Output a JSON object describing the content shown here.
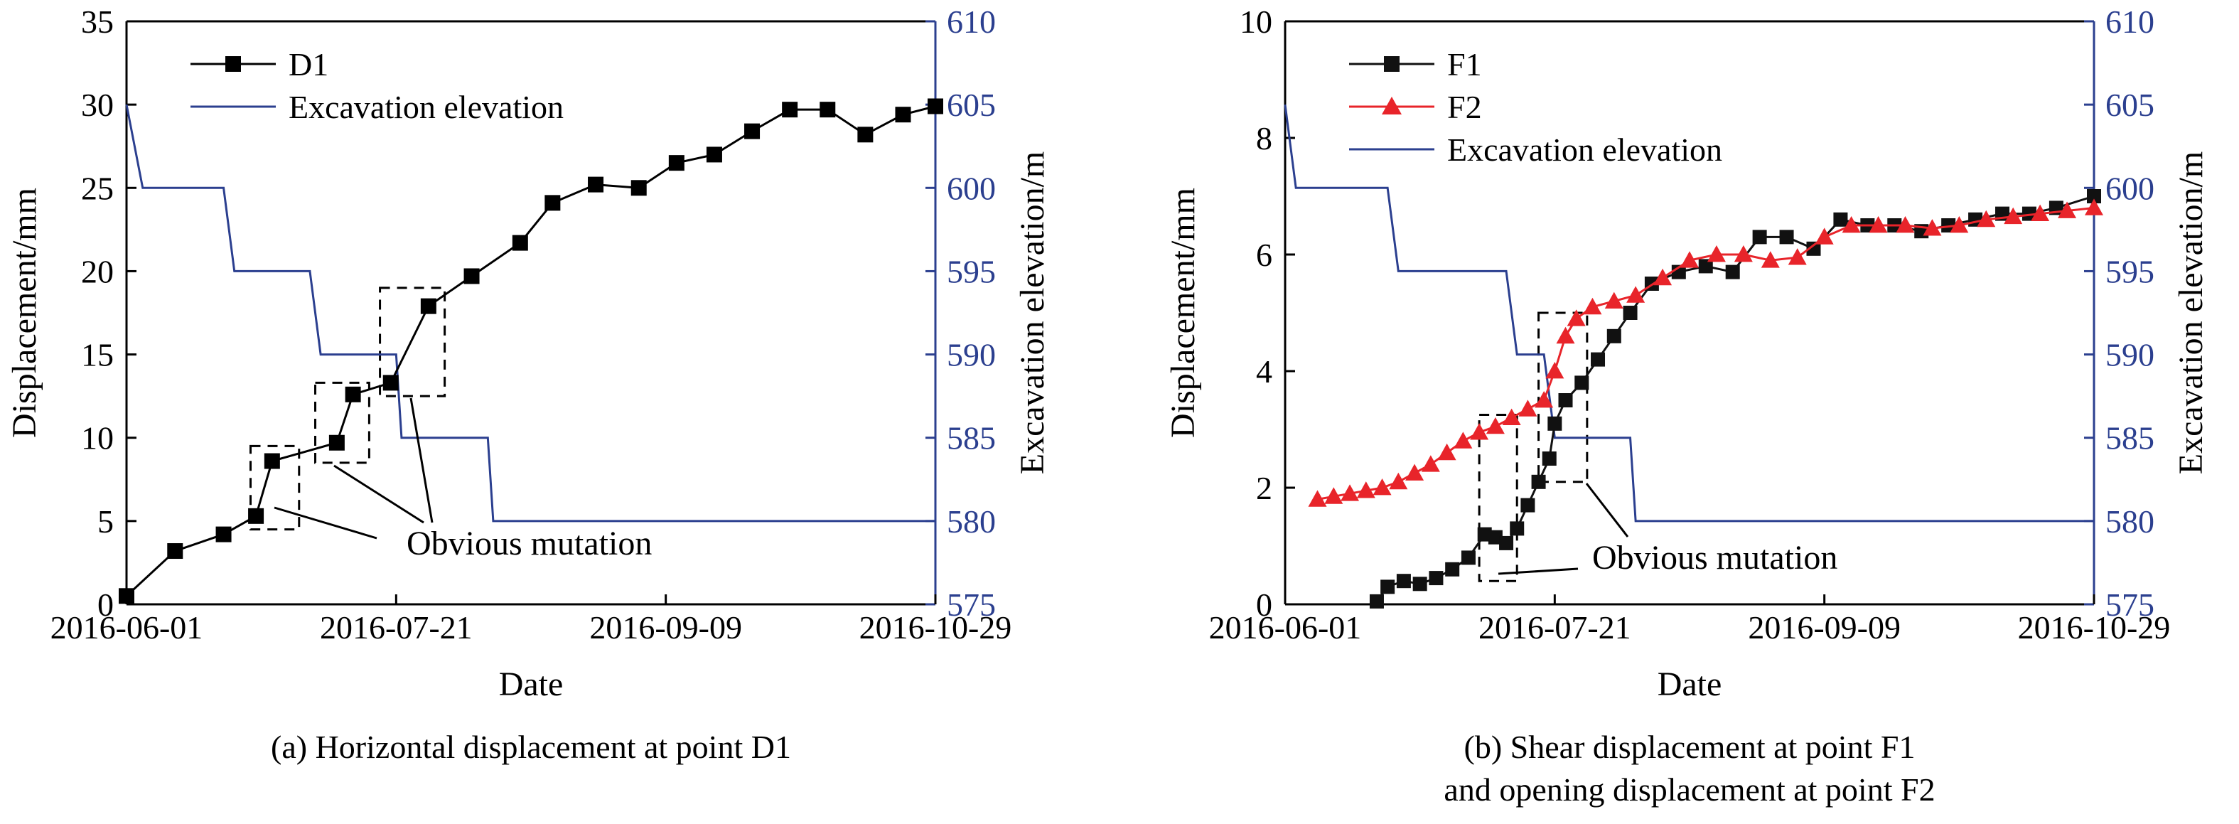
{
  "chart_data": [
    {
      "type": "line",
      "caption": "(a) Horizontal displacement at point D1",
      "xlabel": "Date",
      "ylabel": "Displacement/mm",
      "y2label": "Excavation elevation/m",
      "x_ticks": [
        "2016-06-01",
        "2016-07-21",
        "2016-09-09",
        "2016-10-29"
      ],
      "xlim": [
        "2016-06-01",
        "2016-10-29"
      ],
      "ylim": [
        0,
        35
      ],
      "y_ticks": [
        0,
        5,
        10,
        15,
        20,
        25,
        30,
        35
      ],
      "y2lim": [
        575,
        610
      ],
      "y2_ticks": [
        575,
        580,
        585,
        590,
        595,
        600,
        605,
        610
      ],
      "legend_position": "top-left",
      "annotation": "Obvious mutation",
      "series": [
        {
          "name": "D1",
          "axis": "left",
          "marker": "square",
          "color": "#000000",
          "x": [
            "2016-06-01",
            "2016-06-10",
            "2016-06-19",
            "2016-06-25",
            "2016-06-28",
            "2016-07-10",
            "2016-07-13",
            "2016-07-20",
            "2016-07-27",
            "2016-08-04",
            "2016-08-13",
            "2016-08-19",
            "2016-08-27",
            "2016-09-04",
            "2016-09-11",
            "2016-09-18",
            "2016-09-25",
            "2016-10-02",
            "2016-10-09",
            "2016-10-16",
            "2016-10-23",
            "2016-10-29"
          ],
          "y": [
            0.5,
            3.2,
            4.2,
            5.3,
            8.6,
            9.7,
            12.6,
            13.3,
            17.9,
            19.7,
            21.7,
            24.1,
            25.2,
            25.0,
            26.5,
            27.0,
            28.4,
            29.7,
            29.7,
            28.2,
            29.4,
            29.9
          ]
        },
        {
          "name": "Excavation elevation",
          "axis": "right",
          "color": "#2b3f8f",
          "step_x": [
            "2016-06-01",
            "2016-06-04",
            "2016-06-19",
            "2016-06-21",
            "2016-07-05",
            "2016-07-07",
            "2016-07-21",
            "2016-07-22",
            "2016-08-07",
            "2016-08-08",
            "2016-10-29"
          ],
          "step_y": [
            605,
            600,
            600,
            595,
            595,
            590,
            590,
            585,
            585,
            580,
            580
          ]
        }
      ],
      "mutation_boxes": [
        {
          "x": [
            "2016-06-24",
            "2016-07-03"
          ],
          "y": [
            4.5,
            9.5
          ]
        },
        {
          "x": [
            "2016-07-06",
            "2016-07-16"
          ],
          "y": [
            8.5,
            13.3
          ]
        },
        {
          "x": [
            "2016-07-18",
            "2016-07-30"
          ],
          "y": [
            12.5,
            19.0
          ]
        }
      ]
    },
    {
      "type": "line",
      "caption": "(b) Shear displacement at point F1",
      "caption2": "and opening displacement at point F2",
      "xlabel": "Date",
      "ylabel": "Displacement/mm",
      "y2label": "Excavation elevation/m",
      "x_ticks": [
        "2016-06-01",
        "2016-07-21",
        "2016-09-09",
        "2016-10-29"
      ],
      "xlim": [
        "2016-06-01",
        "2016-10-29"
      ],
      "ylim": [
        0,
        10
      ],
      "y_ticks": [
        0,
        2,
        4,
        6,
        8,
        10
      ],
      "y2lim": [
        575,
        610
      ],
      "y2_ticks": [
        575,
        580,
        585,
        590,
        595,
        600,
        605,
        610
      ],
      "legend_position": "top-left",
      "annotation": "Obvious mutation",
      "series": [
        {
          "name": "F1",
          "axis": "left",
          "marker": "square",
          "color": "#111111",
          "x": [
            "2016-06-18",
            "2016-06-20",
            "2016-06-23",
            "2016-06-26",
            "2016-06-29",
            "2016-07-02",
            "2016-07-05",
            "2016-07-08",
            "2016-07-10",
            "2016-07-12",
            "2016-07-14",
            "2016-07-16",
            "2016-07-18",
            "2016-07-20",
            "2016-07-21",
            "2016-07-23",
            "2016-07-26",
            "2016-07-29",
            "2016-08-01",
            "2016-08-04",
            "2016-08-08",
            "2016-08-13",
            "2016-08-18",
            "2016-08-23",
            "2016-08-28",
            "2016-09-02",
            "2016-09-07",
            "2016-09-12",
            "2016-09-17",
            "2016-09-22",
            "2016-09-27",
            "2016-10-02",
            "2016-10-07",
            "2016-10-12",
            "2016-10-17",
            "2016-10-22",
            "2016-10-29"
          ],
          "y": [
            0.05,
            0.3,
            0.4,
            0.35,
            0.45,
            0.6,
            0.8,
            1.2,
            1.15,
            1.05,
            1.3,
            1.7,
            2.1,
            2.5,
            3.1,
            3.5,
            3.8,
            4.2,
            4.6,
            5.0,
            5.5,
            5.7,
            5.8,
            5.7,
            6.3,
            6.3,
            6.1,
            6.6,
            6.5,
            6.5,
            6.4,
            6.5,
            6.6,
            6.7,
            6.7,
            6.8,
            7.0
          ]
        },
        {
          "name": "F2",
          "axis": "left",
          "marker": "triangle",
          "color": "#e8242a",
          "x": [
            "2016-06-07",
            "2016-06-10",
            "2016-06-13",
            "2016-06-16",
            "2016-06-19",
            "2016-06-22",
            "2016-06-25",
            "2016-06-28",
            "2016-07-01",
            "2016-07-04",
            "2016-07-07",
            "2016-07-10",
            "2016-07-13",
            "2016-07-16",
            "2016-07-19",
            "2016-07-21",
            "2016-07-23",
            "2016-07-25",
            "2016-07-28",
            "2016-08-01",
            "2016-08-05",
            "2016-08-10",
            "2016-08-15",
            "2016-08-20",
            "2016-08-25",
            "2016-08-30",
            "2016-09-04",
            "2016-09-09",
            "2016-09-14",
            "2016-09-19",
            "2016-09-24",
            "2016-09-29",
            "2016-10-04",
            "2016-10-09",
            "2016-10-14",
            "2016-10-19",
            "2016-10-24",
            "2016-10-29"
          ],
          "y": [
            1.8,
            1.85,
            1.9,
            1.95,
            2.0,
            2.1,
            2.25,
            2.4,
            2.6,
            2.8,
            2.95,
            3.05,
            3.2,
            3.35,
            3.5,
            4.0,
            4.6,
            4.9,
            5.1,
            5.2,
            5.3,
            5.6,
            5.9,
            6.0,
            6.0,
            5.9,
            5.95,
            6.3,
            6.5,
            6.5,
            6.5,
            6.45,
            6.5,
            6.6,
            6.65,
            6.7,
            6.75,
            6.8
          ]
        },
        {
          "name": "Excavation elevation",
          "axis": "right",
          "color": "#2b3f8f",
          "step_x": [
            "2016-06-01",
            "2016-06-03",
            "2016-06-20",
            "2016-06-22",
            "2016-07-12",
            "2016-07-14",
            "2016-07-19",
            "2016-07-21",
            "2016-08-04",
            "2016-08-05",
            "2016-10-29"
          ],
          "step_y": [
            605,
            600,
            600,
            595,
            595,
            590,
            590,
            585,
            585,
            580,
            580
          ]
        }
      ],
      "mutation_boxes": [
        {
          "x": [
            "2016-07-07",
            "2016-07-14"
          ],
          "y": [
            0.4,
            3.25
          ]
        },
        {
          "x": [
            "2016-07-18",
            "2016-07-27"
          ],
          "y": [
            2.1,
            5.0
          ]
        }
      ]
    }
  ]
}
